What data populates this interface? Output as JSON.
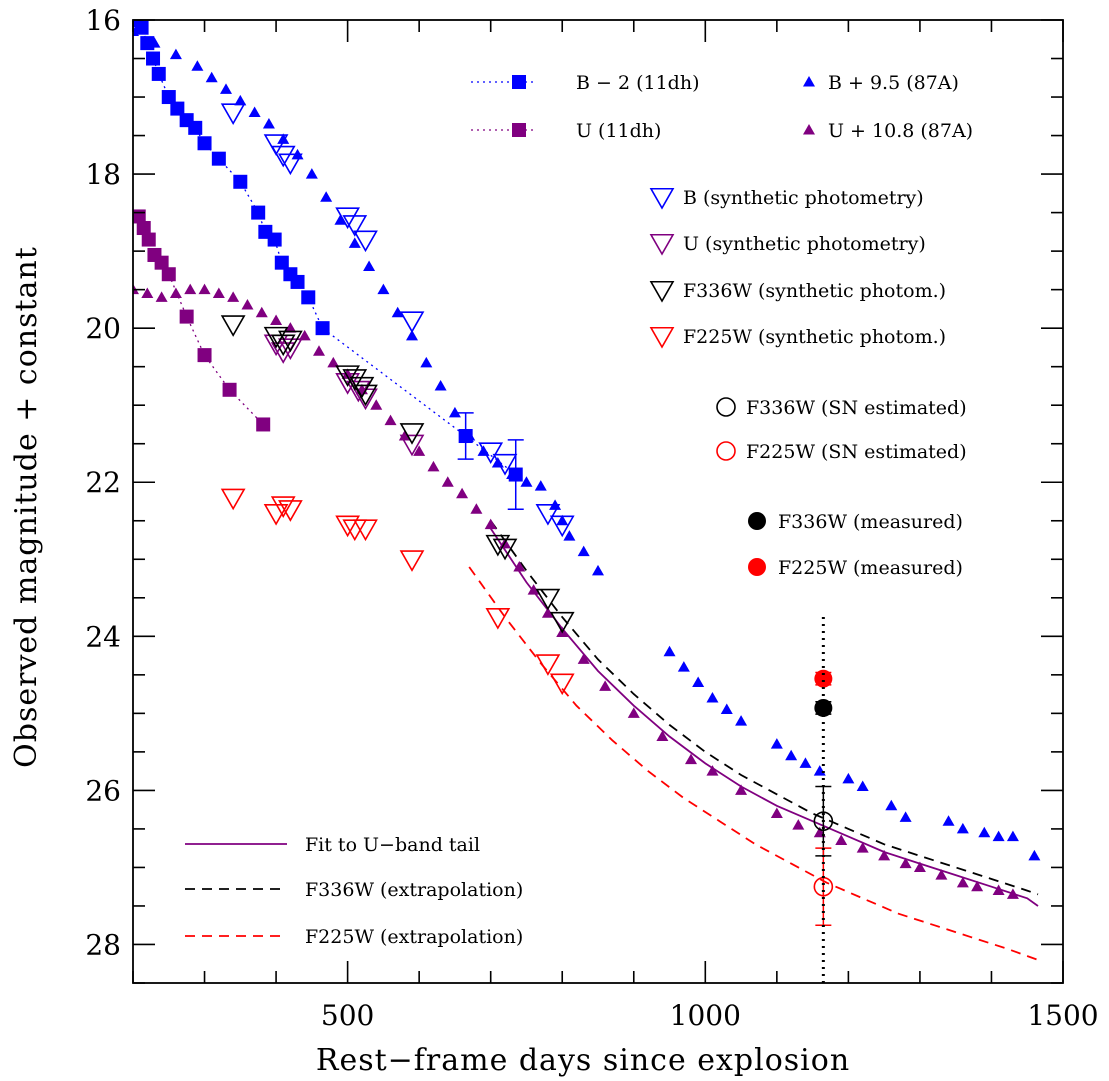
{
  "chart_data": {
    "type": "scatter",
    "xlabel": "Rest−frame days since explosion",
    "ylabel": "Observed magnitude + constant",
    "xlim": [
      200,
      1500
    ],
    "ylim": [
      16,
      28.5
    ],
    "y_inverted": true,
    "x_ticks": [
      500,
      1000,
      1500
    ],
    "y_ticks": [
      16,
      18,
      20,
      22,
      24,
      26,
      28
    ],
    "vertical_marker_x": 1165,
    "series": [
      {
        "name": "B − 2 (11dh)",
        "legend_label": "B − 2 (11dh)",
        "color": "#0000ff",
        "marker": "square",
        "linestyle": "dotted",
        "x": [
          205,
          212,
          220,
          228,
          236,
          250,
          262,
          275,
          287,
          300,
          320,
          350,
          375,
          385,
          398,
          408,
          420,
          430,
          445,
          465,
          665,
          735
        ],
        "y": [
          16.0,
          16.1,
          16.3,
          16.5,
          16.7,
          17.0,
          17.15,
          17.3,
          17.4,
          17.6,
          17.8,
          18.1,
          18.5,
          18.75,
          18.85,
          19.15,
          19.3,
          19.4,
          19.6,
          20.0,
          21.4,
          21.9
        ],
        "yerr": [
          0,
          0,
          0,
          0,
          0,
          0,
          0,
          0,
          0,
          0,
          0,
          0,
          0,
          0,
          0,
          0,
          0,
          0,
          0,
          0,
          0.3,
          0.45
        ]
      },
      {
        "name": "U (11dh)",
        "legend_label": "U (11dh)",
        "color": "#800080",
        "marker": "square",
        "linestyle": "dotted",
        "x": [
          208,
          215,
          222,
          230,
          240,
          250,
          275,
          300,
          335,
          382
        ],
        "y": [
          18.55,
          18.7,
          18.85,
          19.05,
          19.15,
          19.3,
          19.85,
          20.35,
          20.8,
          21.25
        ],
        "yerr": [
          0,
          0,
          0,
          0,
          0,
          0,
          0,
          0,
          0,
          0
        ]
      },
      {
        "name": "B + 9.5 (87A)",
        "legend_label": "B + 9.5 (87A)",
        "color": "#0000ff",
        "marker": "triangle",
        "x": [
          200,
          230,
          260,
          290,
          310,
          330,
          350,
          370,
          390,
          410,
          430,
          450,
          470,
          490,
          510,
          530,
          550,
          570,
          590,
          610,
          630,
          650,
          670,
          690,
          710,
          730,
          750,
          770,
          790,
          800,
          810,
          830,
          850,
          950,
          970,
          990,
          1010,
          1030,
          1050,
          1100,
          1120,
          1140,
          1160,
          1200,
          1220,
          1260,
          1280,
          1340,
          1360,
          1390,
          1410,
          1430,
          1460
        ],
        "y": [
          16.15,
          16.3,
          16.45,
          16.6,
          16.75,
          16.9,
          17.05,
          17.2,
          17.35,
          17.55,
          17.75,
          18.0,
          18.3,
          18.6,
          18.9,
          19.2,
          19.5,
          19.8,
          20.1,
          20.45,
          20.75,
          21.1,
          21.4,
          21.6,
          21.75,
          21.9,
          22.0,
          22.05,
          22.3,
          22.5,
          22.7,
          22.9,
          23.15,
          24.2,
          24.4,
          24.6,
          24.8,
          24.95,
          25.1,
          25.4,
          25.55,
          25.65,
          25.75,
          25.85,
          25.95,
          26.2,
          26.35,
          26.4,
          26.5,
          26.55,
          26.6,
          26.6,
          26.85
        ]
      },
      {
        "name": "U + 10.8 (87A)",
        "legend_label": "U + 10.8 (87A)",
        "color": "#800080",
        "marker": "triangle",
        "x": [
          200,
          220,
          240,
          260,
          280,
          300,
          320,
          340,
          360,
          380,
          400,
          420,
          440,
          460,
          480,
          500,
          520,
          540,
          560,
          580,
          600,
          620,
          640,
          660,
          680,
          700,
          720,
          740,
          760,
          780,
          800,
          830,
          860,
          900,
          940,
          980,
          1010,
          1050,
          1100,
          1130,
          1160,
          1190,
          1220,
          1250,
          1280,
          1300,
          1330,
          1360,
          1380,
          1410,
          1430
        ],
        "y": [
          19.5,
          19.55,
          19.6,
          19.55,
          19.5,
          19.5,
          19.55,
          19.6,
          19.7,
          19.8,
          19.9,
          20.0,
          20.1,
          20.3,
          20.45,
          20.6,
          20.8,
          21.0,
          21.2,
          21.4,
          21.6,
          21.8,
          22.0,
          22.15,
          22.35,
          22.55,
          22.8,
          23.1,
          23.4,
          23.7,
          23.95,
          24.3,
          24.65,
          25.0,
          25.3,
          25.6,
          25.75,
          26.0,
          26.3,
          26.45,
          26.55,
          26.65,
          26.75,
          26.85,
          26.95,
          27.0,
          27.1,
          27.2,
          27.25,
          27.3,
          27.35
        ]
      },
      {
        "name": "B (synthetic photometry)",
        "legend_label": "B (synthetic photometry)",
        "color": "#0000ff",
        "marker": "open-triangle-down",
        "x": [
          340,
          400,
          410,
          420,
          500,
          510,
          525,
          590,
          700,
          720,
          780,
          800
        ],
        "y": [
          17.2,
          17.6,
          17.75,
          17.85,
          18.55,
          18.65,
          18.85,
          19.9,
          21.6,
          21.75,
          22.4,
          22.55
        ]
      },
      {
        "name": "U (synthetic photometry)",
        "legend_label": "U (synthetic photometry)",
        "color": "#800080",
        "marker": "open-triangle-down",
        "x": [
          400,
          410,
          420,
          500,
          515,
          525,
          590
        ],
        "y": [
          20.2,
          20.3,
          20.25,
          20.7,
          20.8,
          20.9,
          21.5
        ]
      },
      {
        "name": "F336W (synthetic photom.)",
        "legend_label": "F336W (synthetic photom.)",
        "color": "#000000",
        "marker": "open-triangle-down",
        "x": [
          340,
          400,
          410,
          420,
          500,
          510,
          520,
          525,
          590,
          710,
          720,
          780,
          800
        ],
        "y": [
          19.95,
          20.1,
          20.2,
          20.15,
          20.6,
          20.65,
          20.75,
          20.85,
          21.35,
          22.8,
          22.85,
          23.5,
          23.8
        ]
      },
      {
        "name": "F225W (synthetic photom.)",
        "legend_label": "F225W (synthetic photom.)",
        "color": "#ff0000",
        "marker": "open-triangle-down",
        "x": [
          340,
          400,
          410,
          420,
          500,
          510,
          525,
          590,
          710,
          780,
          800
        ],
        "y": [
          22.2,
          22.4,
          22.3,
          22.35,
          22.55,
          22.6,
          22.6,
          23.0,
          23.75,
          24.35,
          24.6
        ]
      },
      {
        "name": "F336W (SN estimated)",
        "legend_label": "F336W (SN estimated)",
        "color": "#000000",
        "marker": "open-circle",
        "x": [
          1165
        ],
        "y": [
          26.4
        ],
        "yerr": [
          0.45
        ]
      },
      {
        "name": "F225W (SN estimated)",
        "legend_label": "F225W (SN estimated)",
        "color": "#ff0000",
        "marker": "open-circle",
        "x": [
          1165
        ],
        "y": [
          27.25
        ],
        "yerr": [
          0.5
        ]
      },
      {
        "name": "F336W (measured)",
        "legend_label": "F336W (measured)",
        "color": "#000000",
        "marker": "filled-circle",
        "x": [
          1165
        ],
        "y": [
          24.93
        ],
        "yerr": [
          0.08
        ]
      },
      {
        "name": "F225W (measured)",
        "legend_label": "F225W (measured)",
        "color": "#ff0000",
        "marker": "filled-circle",
        "x": [
          1165
        ],
        "y": [
          24.55
        ],
        "yerr": [
          0.08
        ]
      }
    ],
    "curves": [
      {
        "name": "Fit to U−band tail",
        "legend_label": "Fit to U−band tail",
        "color": "#800080",
        "linestyle": "solid",
        "x": [
          700,
          750,
          800,
          850,
          900,
          950,
          1000,
          1050,
          1100,
          1150,
          1200,
          1250,
          1300,
          1350,
          1400,
          1450,
          1465
        ],
        "y": [
          22.6,
          23.3,
          23.9,
          24.45,
          24.9,
          25.3,
          25.65,
          25.95,
          26.2,
          26.4,
          26.6,
          26.8,
          26.95,
          27.1,
          27.25,
          27.4,
          27.5
        ]
      },
      {
        "name": "F336W (extrapolation)",
        "legend_label": "F336W (extrapolation)",
        "color": "#000000",
        "linestyle": "dashed",
        "x": [
          700,
          750,
          800,
          850,
          900,
          950,
          1000,
          1050,
          1100,
          1150,
          1200,
          1250,
          1300,
          1350,
          1400,
          1450,
          1465
        ],
        "y": [
          22.5,
          23.15,
          23.75,
          24.3,
          24.75,
          25.15,
          25.5,
          25.8,
          26.05,
          26.3,
          26.5,
          26.7,
          26.85,
          27.0,
          27.15,
          27.3,
          27.35
        ]
      },
      {
        "name": "F225W (extrapolation)",
        "legend_label": "F225W (extrapolation)",
        "color": "#ff0000",
        "linestyle": "dashed",
        "x": [
          670,
          720,
          770,
          820,
          870,
          920,
          970,
          1020,
          1070,
          1120,
          1170,
          1220,
          1270,
          1320,
          1370,
          1420,
          1465
        ],
        "y": [
          23.1,
          23.75,
          24.35,
          24.9,
          25.35,
          25.75,
          26.1,
          26.4,
          26.7,
          26.95,
          27.2,
          27.4,
          27.6,
          27.75,
          27.9,
          28.05,
          28.2
        ]
      }
    ]
  }
}
